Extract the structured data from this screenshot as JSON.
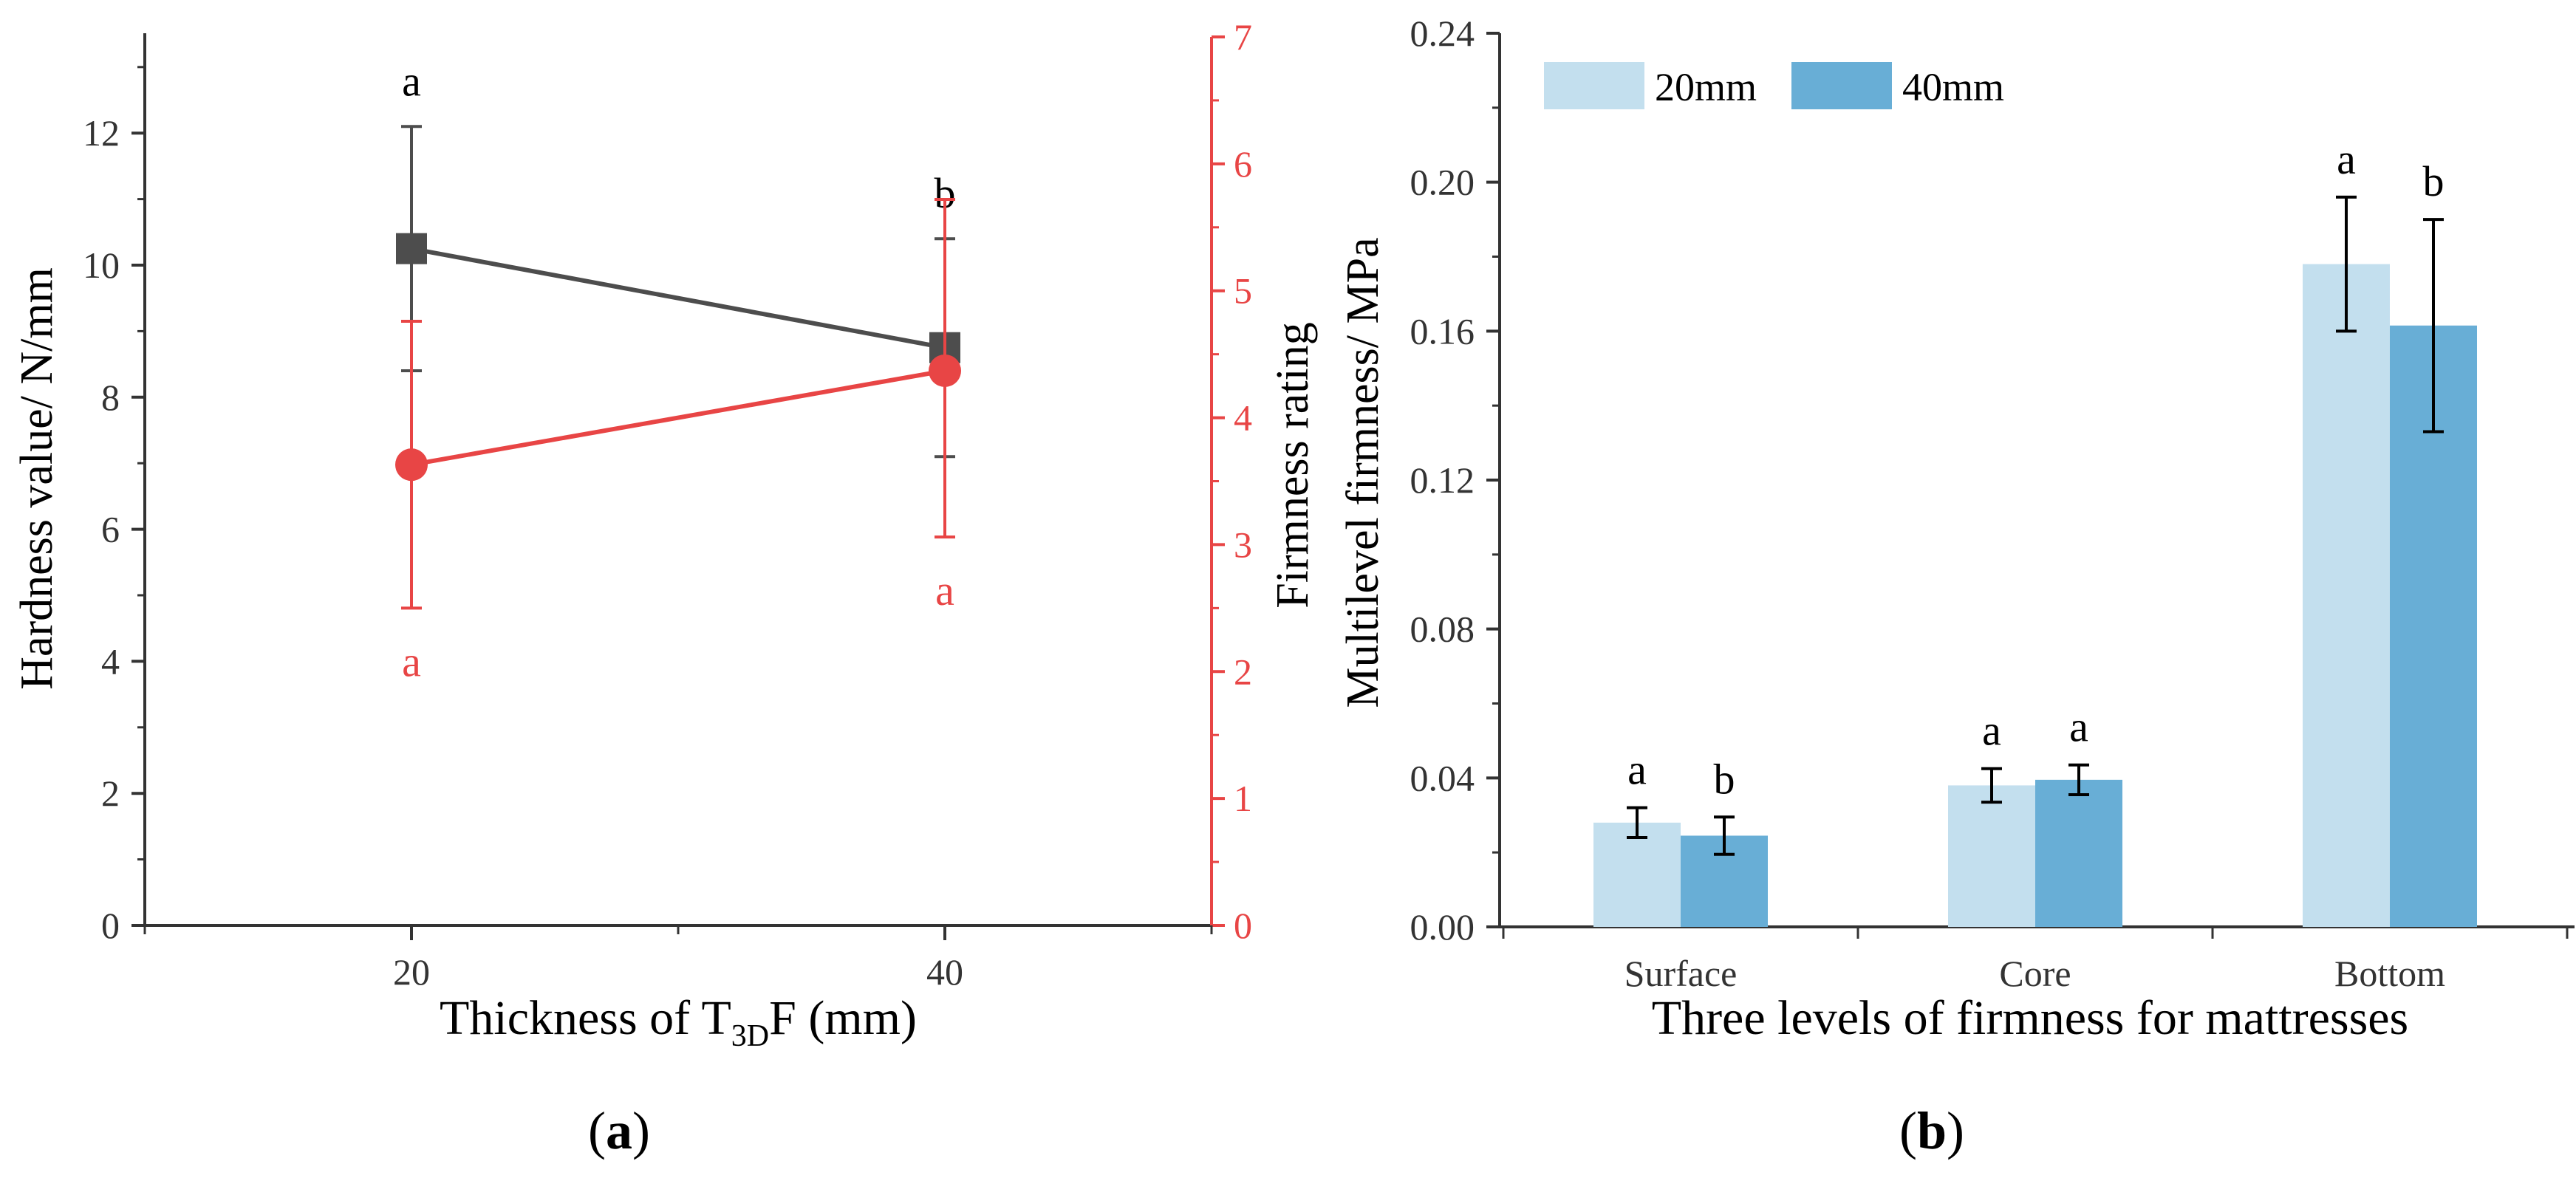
{
  "colors": {
    "axis": "#333333",
    "hardness_series": "#4d4d4d",
    "firmness_series": "#e84545",
    "bar_20mm": "#c3dfee",
    "bar_40mm": "#68aed6",
    "error_bar": "#000000"
  },
  "chart_data": [
    {
      "type": "line",
      "panel_label": "a",
      "xlabel_main": "Thickness of T",
      "xlabel_sub": "3D",
      "xlabel_rest": "F (mm)",
      "ylabel": "Hardness value/ N/mm",
      "y2label": "Firmness rating",
      "x_ticks": [
        "20",
        "40"
      ],
      "x_values": [
        20,
        40
      ],
      "xlim": [
        10,
        50
      ],
      "ylim": [
        0,
        13.5
      ],
      "y_ticks": [
        "0",
        "2",
        "4",
        "6",
        "8",
        "10",
        "12"
      ],
      "y2lim": [
        0,
        7
      ],
      "y2_ticks": [
        "0",
        "1",
        "2",
        "3",
        "4",
        "5",
        "6",
        "7"
      ],
      "series": [
        {
          "axis": "left",
          "marker": "square",
          "color": "#4d4d4d",
          "values": [
            10.25,
            8.75
          ],
          "err_upper": [
            12.1,
            10.4
          ],
          "err_lower": [
            8.4,
            7.1
          ],
          "letters": [
            "a",
            "b"
          ]
        },
        {
          "axis": "right",
          "marker": "circle",
          "color": "#e84545",
          "values": [
            3.63,
            4.37
          ],
          "err_upper": [
            4.76,
            5.72
          ],
          "err_lower": [
            2.5,
            3.06
          ],
          "letters": [
            "a",
            "a"
          ]
        }
      ]
    },
    {
      "type": "bar",
      "panel_label": "b",
      "xlabel": "Three levels of firmness for mattresses",
      "ylabel": "Multilevel firmness/ MPa",
      "categories": [
        "Surface",
        "Core",
        "Bottom"
      ],
      "ylim": [
        0,
        0.24
      ],
      "y_ticks": [
        "0.00",
        "0.04",
        "0.08",
        "0.12",
        "0.16",
        "0.20",
        "0.24"
      ],
      "series": [
        {
          "name": "20mm",
          "color": "#c3dfee",
          "values": [
            0.028,
            0.038,
            0.178
          ],
          "err": [
            0.004,
            0.0045,
            0.018
          ],
          "letters": [
            "a",
            "a",
            "a"
          ]
        },
        {
          "name": "40mm",
          "color": "#68aed6",
          "values": [
            0.0245,
            0.0395,
            0.1615
          ],
          "err": [
            0.005,
            0.004,
            0.0285
          ],
          "letters": [
            "b",
            "a",
            "b"
          ]
        }
      ]
    }
  ]
}
